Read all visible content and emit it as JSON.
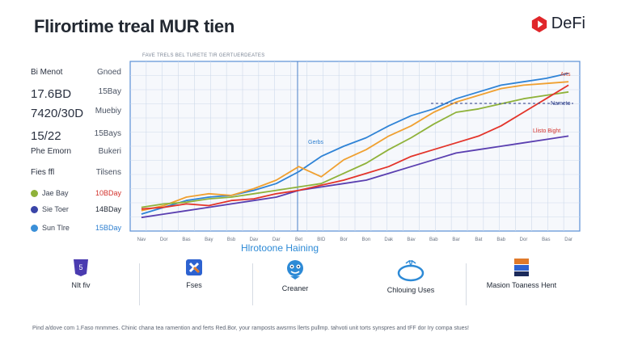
{
  "header": {
    "title": "Flirortime treal MUR tien",
    "brand": "DeFi",
    "brand_color": "#e0262a"
  },
  "stats": [
    {
      "label": "Bi Menot",
      "sub": "",
      "value": "Gnoed"
    },
    {
      "label": "17.6BD",
      "value": "15Bay"
    },
    {
      "label": "7420/30D",
      "value": "Muebiy"
    },
    {
      "label": "15/22",
      "value": "15Bays"
    },
    {
      "label": "Phe Emorn",
      "value": "Bukeri"
    },
    {
      "label": "Fies ffl",
      "value": "Tilsens"
    }
  ],
  "legend": [
    {
      "label": "Jae Bay",
      "value": "10BDay",
      "color": "#8fb23a",
      "value_color": "#d3322c"
    },
    {
      "label": "Sie Toer",
      "value": "14BDay",
      "color": "#3a45a8",
      "value_color": "#1e2633"
    },
    {
      "label": "Sun Tlre",
      "value": "15BDay",
      "color": "#3a8fd8",
      "value_color": "#2d7fd0"
    }
  ],
  "chart": {
    "subtitle": "FAVE TRELS BEL TURETE TIR GERTUERDEATES",
    "caption": "Hlrotoone Haining",
    "x_ticks": [
      "Nav",
      "Dor",
      "Bas",
      "Bay",
      "Bsb",
      "Dav",
      "Dar",
      "Bet",
      "BID",
      "Bor",
      "Bon",
      "Dak",
      "Bav",
      "Bab",
      "Bar",
      "Bat",
      "Bab",
      "Dor",
      "Bas",
      "Dar"
    ],
    "annotations": [
      {
        "text": "Arts",
        "color": "#e34a2a"
      },
      {
        "text": "Nameto",
        "color": "#2d3e8a"
      },
      {
        "text": "Llisto Bight",
        "color": "#d3322c"
      },
      {
        "text": "Gerbs",
        "color": "#2d7fd0"
      }
    ]
  },
  "chart_data": {
    "type": "line",
    "title": "",
    "xlabel": "Hlrotoone Haining",
    "ylabel": "",
    "x": [
      "Nav",
      "Dor",
      "Bas",
      "Bay",
      "Bsb",
      "Dav",
      "Dar",
      "Bet",
      "BID",
      "Bor",
      "Bon",
      "Dak",
      "Bav",
      "Bab",
      "Bar",
      "Bat",
      "Bab",
      "Dor",
      "Bas",
      "Dar"
    ],
    "ylim": [
      0,
      100
    ],
    "grid": true,
    "series": [
      {
        "color": "#2f83d6",
        "values": [
          10,
          14,
          18,
          20,
          21,
          24,
          28,
          35,
          44,
          50,
          55,
          62,
          68,
          72,
          78,
          82,
          86,
          88,
          90,
          93
        ]
      },
      {
        "color": "#f0a030",
        "values": [
          12,
          15,
          20,
          22,
          21,
          25,
          30,
          38,
          32,
          42,
          48,
          56,
          62,
          70,
          76,
          80,
          84,
          86,
          87,
          88
        ]
      },
      {
        "color": "#8fb23a",
        "values": [
          14,
          16,
          17,
          19,
          20,
          22,
          24,
          26,
          28,
          34,
          40,
          48,
          55,
          63,
          70,
          72,
          75,
          78,
          80,
          82
        ]
      },
      {
        "color": "#5a3fb0",
        "values": [
          8,
          10,
          12,
          14,
          16,
          18,
          20,
          24,
          26,
          28,
          30,
          34,
          38,
          42,
          46,
          48,
          50,
          52,
          54,
          56
        ]
      },
      {
        "color": "#e3342a",
        "values": [
          13,
          14,
          16,
          15,
          18,
          19,
          22,
          24,
          27,
          30,
          34,
          38,
          44,
          48,
          52,
          56,
          62,
          70,
          78,
          86
        ]
      }
    ]
  },
  "features": [
    {
      "label": "NIt fiv",
      "icon": "shield-icon",
      "color": "#4a3bb0"
    },
    {
      "label": "Fses",
      "icon": "cross-icon",
      "color": "#2d62d0"
    },
    {
      "label": "Creaner",
      "icon": "mascot-icon",
      "color": "#2d8ad6"
    },
    {
      "label": "Chlouing Uses",
      "icon": "ring-icon",
      "color": "#2d8ad6"
    },
    {
      "label": "Masion Toaness Hent",
      "icon": "stack-icon",
      "color": "#e07a2a"
    }
  ],
  "footnote": "Pind a/dove com   1.Faso mnmmes. Chinic chana tea ramention and ferts Red.Bor, your ramposts awsrms llerts pullmp. tahvoti unit torts synspres and tFF dor Iry compa stues!"
}
